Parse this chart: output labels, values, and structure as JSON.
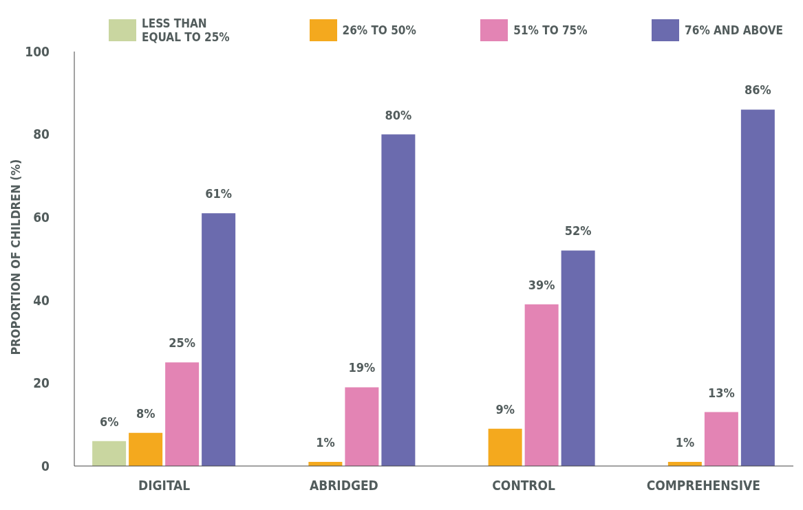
{
  "chart_data": {
    "type": "bar",
    "ylabel": "PROPORTION OF CHILDREN (%)",
    "categories": [
      "DIGITAL",
      "ABRIDGED",
      "CONTROL",
      "COMPREHENSIVE"
    ],
    "series": [
      {
        "name": "LESS THAN EQUAL TO 25%",
        "color": "#c9d6a0",
        "values": [
          6,
          null,
          null,
          null
        ],
        "value_labels": [
          "6%",
          null,
          null,
          null
        ]
      },
      {
        "name": "26% TO 50%",
        "color": "#f4a91e",
        "values": [
          8,
          1,
          9,
          1
        ],
        "value_labels": [
          "8%",
          "1%",
          "9%",
          "1%"
        ]
      },
      {
        "name": "51% TO 75%",
        "color": "#e384b4",
        "values": [
          25,
          19,
          39,
          13
        ],
        "value_labels": [
          "25%",
          "19%",
          "39%",
          "13%"
        ]
      },
      {
        "name": "76% AND ABOVE",
        "color": "#6b6bae",
        "values": [
          61,
          80,
          52,
          86
        ],
        "value_labels": [
          "61%",
          "80%",
          "52%",
          "86%"
        ]
      }
    ],
    "ylim": [
      0,
      100
    ],
    "yticks": [
      0,
      20,
      40,
      60,
      80,
      100
    ],
    "grid": false,
    "legend": "top"
  }
}
